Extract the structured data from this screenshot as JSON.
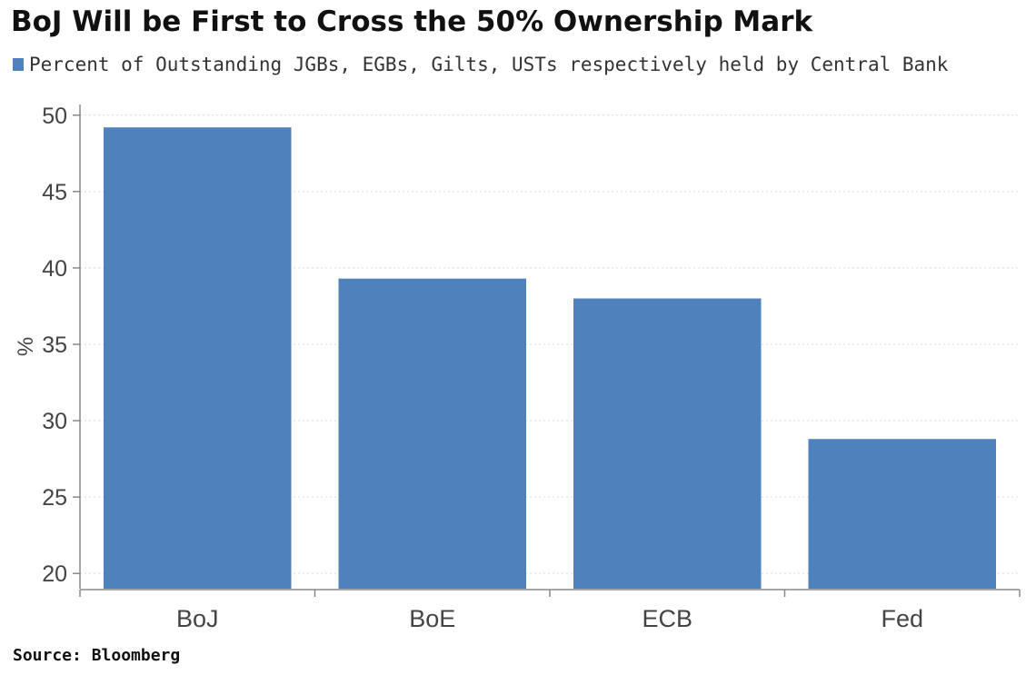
{
  "title": "BoJ Will be First to Cross the 50% Ownership Mark",
  "legend_label": "Percent of Outstanding JGBs, EGBs, Gilts, USTs respectively held by Central Bank",
  "source": "Source: Bloomberg",
  "colors": {
    "bar": "#4f81bd",
    "grid": "#d9d9d9",
    "axis": "#888888",
    "text": "#444444"
  },
  "chart_data": {
    "type": "bar",
    "categories": [
      "BoJ",
      "BoE",
      "ECB",
      "Fed"
    ],
    "series": [
      {
        "name": "Percent of Outstanding JGBs, EGBs, Gilts, USTs respectively held by Central Bank",
        "values": [
          49.2,
          39.3,
          38.0,
          28.8
        ]
      }
    ],
    "ylabel": "%",
    "ylim": [
      19,
      50.7
    ],
    "yticks": [
      20,
      25,
      30,
      35,
      40,
      45,
      50
    ],
    "grid": true,
    "legend": "top-left"
  }
}
